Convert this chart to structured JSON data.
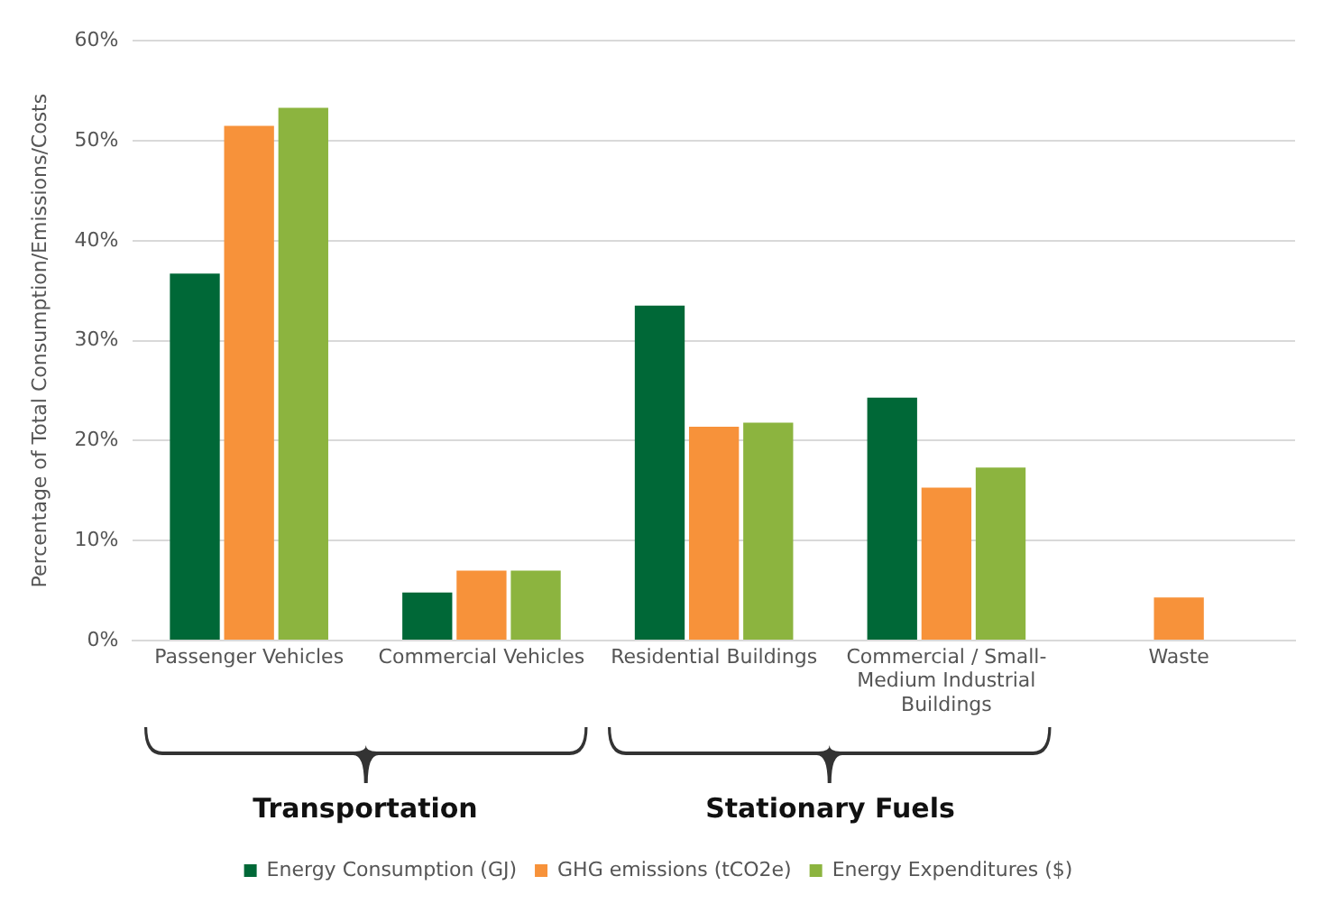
{
  "chart_data": {
    "type": "bar",
    "ylabel": "Percentage of Total Consumption/Emissions/Costs",
    "categories": [
      "Passenger Vehicles",
      "Commercial Vehicles",
      "Residential Buildings",
      "Commercial / Small-Medium Industrial Buildings",
      "Waste"
    ],
    "series": [
      {
        "name": "Energy Consumption (GJ)",
        "color": "#006837",
        "values": [
          36.7,
          4.8,
          33.5,
          24.3,
          null
        ]
      },
      {
        "name": "GHG emissions (tCO2e)",
        "color": "#f7923a",
        "values": [
          51.5,
          7.0,
          21.4,
          15.3,
          4.3
        ]
      },
      {
        "name": "Energy Expenditures ($)",
        "color": "#8cb43f",
        "values": [
          53.3,
          7.0,
          21.8,
          17.3,
          null
        ]
      }
    ],
    "ylim": [
      0,
      60
    ],
    "yticks": [
      {
        "value": 0,
        "label": "0%"
      },
      {
        "value": 10,
        "label": "10%"
      },
      {
        "value": 20,
        "label": "20%"
      },
      {
        "value": 30,
        "label": "30%"
      },
      {
        "value": 40,
        "label": "40%"
      },
      {
        "value": 50,
        "label": "50%"
      },
      {
        "value": 60,
        "label": "60%"
      }
    ],
    "grid": "y",
    "legend": "bottom",
    "annotations": [
      "Transportation",
      "Stationary Fuels"
    ]
  }
}
